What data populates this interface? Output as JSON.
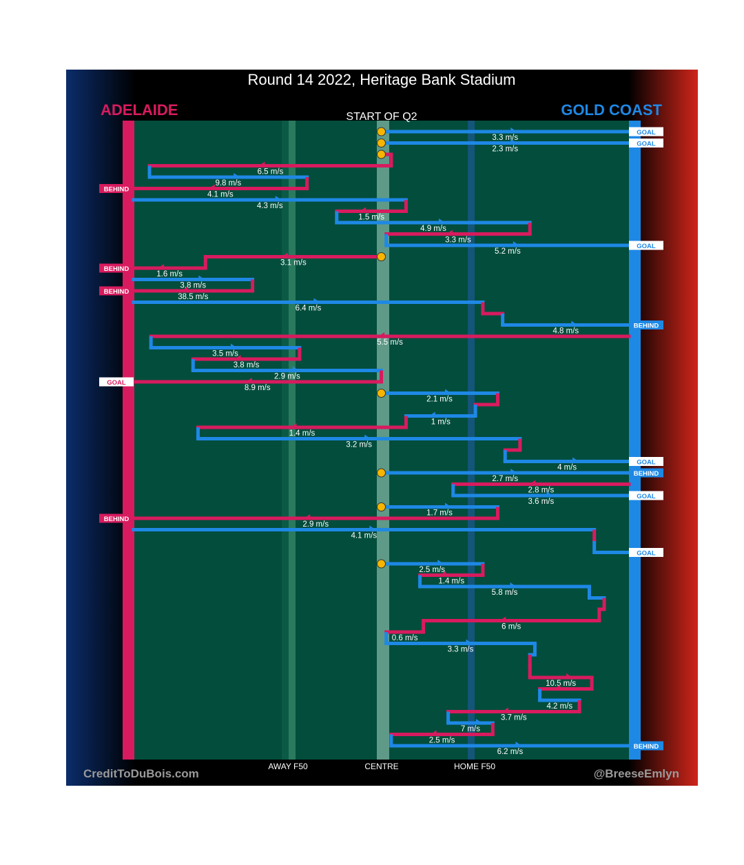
{
  "chart_data": {
    "type": "line",
    "title": "Round 14 2022, Heritage Bank Stadium",
    "subtitle": "START OF Q2",
    "teams": {
      "left": {
        "name": "ADELAIDE",
        "color": "#d81b5e"
      },
      "right": {
        "name": "GOLD COAST",
        "color": "#1e88e5"
      }
    },
    "x_axis_labels": [
      {
        "label": "AWAY F50",
        "at": 0.3
      },
      {
        "label": "CENTRE",
        "at": 0.5
      },
      {
        "label": "HOME F50",
        "at": 0.7
      }
    ],
    "credits": {
      "left": "CreditToDuBois.com",
      "right": "@BreeseEmlyn"
    },
    "colors": {
      "field": "#034d3c",
      "adelaide": "#d81b5e",
      "gold_coast": "#1e88e5",
      "marker": "#f7b500",
      "header": "#000000"
    },
    "chains": [
      {
        "segments": [
          {
            "team": "gc",
            "from": 0.5,
            "to": 1.0,
            "row": 0,
            "speed": "3.3 m/s"
          }
        ],
        "outcome": {
          "side": "right",
          "label": "GOAL",
          "team": "gc"
        }
      },
      {
        "segments": [
          {
            "team": "gc",
            "from": 0.5,
            "to": 1.0,
            "row": 1,
            "speed": "2.3 m/s"
          }
        ],
        "outcome": {
          "side": "right",
          "label": "GOAL",
          "team": "gc"
        }
      },
      {
        "segments": [
          {
            "team": "ad",
            "from": 0.5,
            "to": 0.52,
            "row": 2,
            "speed": ""
          },
          {
            "team": "ad",
            "from": 0.52,
            "to": 0.032,
            "row": 3,
            "speed": "6.5 m/s"
          },
          {
            "team": "gc",
            "from": 0.032,
            "to": 0.35,
            "row": 4,
            "speed": "9.8 m/s"
          },
          {
            "team": "ad",
            "from": 0.35,
            "to": 0.0,
            "row": 5,
            "speed": "4.1 m/s"
          }
        ],
        "outcome": {
          "side": "left",
          "label": "BEHIND",
          "team": "ad"
        }
      },
      {
        "segments": [
          {
            "team": "gc",
            "from": 0.0,
            "to": 0.55,
            "row": 6,
            "speed": "4.3 m/s"
          },
          {
            "team": "ad",
            "from": 0.55,
            "to": 0.41,
            "row": 7,
            "speed": "1.5 m/s"
          },
          {
            "team": "gc",
            "from": 0.41,
            "to": 0.8,
            "row": 8,
            "speed": "4.9 m/s"
          },
          {
            "team": "ad",
            "from": 0.8,
            "to": 0.51,
            "row": 9,
            "speed": "3.3 m/s"
          },
          {
            "team": "gc",
            "from": 0.51,
            "to": 1.0,
            "row": 10,
            "speed": "5.2 m/s"
          }
        ],
        "outcome": {
          "side": "right",
          "label": "GOAL",
          "team": "gc"
        }
      },
      {
        "segments": [
          {
            "team": "ad",
            "from": 0.5,
            "to": 0.145,
            "row": 11,
            "speed": "3.1 m/s"
          },
          {
            "team": "ad",
            "from": 0.145,
            "to": 0.0,
            "row": 12,
            "speed": "1.6 m/s"
          }
        ],
        "outcome": {
          "side": "left",
          "label": "BEHIND",
          "team": "ad"
        }
      },
      {
        "segments": [
          {
            "team": "gc",
            "from": 0.0,
            "to": 0.24,
            "row": 13,
            "speed": "3.8 m/s"
          },
          {
            "team": "ad",
            "from": 0.24,
            "to": 0.0,
            "row": 14,
            "speed": "38.5 m/s"
          }
        ],
        "outcome": {
          "side": "left",
          "label": "BEHIND",
          "team": "ad"
        }
      },
      {
        "segments": [
          {
            "team": "gc",
            "from": 0.0,
            "to": 0.705,
            "row": 15,
            "speed": "6.4 m/s"
          },
          {
            "team": "ad",
            "from": 0.705,
            "to": 0.745,
            "row": 16,
            "speed": ""
          },
          {
            "team": "gc",
            "from": 0.745,
            "to": 1.0,
            "row": 17,
            "speed": "4.8 m/s"
          }
        ],
        "outcome": {
          "side": "right",
          "label": "BEHIND",
          "team": "gc"
        }
      },
      {
        "segments": [
          {
            "team": "ad",
            "from": 1.0,
            "to": 0.035,
            "row": 18,
            "speed": "5.5 m/s"
          },
          {
            "team": "gc",
            "from": 0.035,
            "to": 0.335,
            "row": 19,
            "speed": "3.5 m/s"
          },
          {
            "team": "ad",
            "from": 0.335,
            "to": 0.12,
            "row": 20,
            "speed": "3.8 m/s"
          },
          {
            "team": "gc",
            "from": 0.12,
            "to": 0.5,
            "row": 21,
            "speed": "2.9 m/s"
          },
          {
            "team": "ad",
            "from": 0.5,
            "to": 0.0,
            "row": 22,
            "speed": "8.9 m/s"
          }
        ],
        "outcome": {
          "side": "left",
          "label": "GOAL",
          "team": "ad"
        }
      },
      {
        "segments": [
          {
            "team": "gc",
            "from": 0.5,
            "to": 0.735,
            "row": 23,
            "speed": "2.1 m/s"
          },
          {
            "team": "ad",
            "from": 0.735,
            "to": 0.69,
            "row": 24,
            "speed": ""
          },
          {
            "team": "gc",
            "from": 0.69,
            "to": 0.55,
            "row": 25,
            "speed": "1 m/s"
          },
          {
            "team": "ad",
            "from": 0.55,
            "to": 0.13,
            "row": 26,
            "speed": "1.4 m/s"
          },
          {
            "team": "gc",
            "from": 0.13,
            "to": 0.78,
            "row": 27,
            "speed": "3.2 m/s"
          },
          {
            "team": "ad",
            "from": 0.78,
            "to": 0.75,
            "row": 28,
            "speed": ""
          },
          {
            "team": "gc",
            "from": 0.75,
            "to": 1.0,
            "row": 29,
            "speed": "4 m/s"
          }
        ],
        "outcome": {
          "side": "right",
          "label": "GOAL",
          "team": "gc"
        }
      },
      {
        "segments": [
          {
            "team": "gc",
            "from": 0.5,
            "to": 1.0,
            "row": 30,
            "speed": "2.7 m/s"
          }
        ],
        "outcome": {
          "side": "right",
          "label": "BEHIND",
          "team": "gc"
        }
      },
      {
        "segments": [
          {
            "team": "ad",
            "from": 1.0,
            "to": 0.645,
            "row": 31,
            "speed": "2.8 m/s"
          },
          {
            "team": "gc",
            "from": 0.645,
            "to": 1.0,
            "row": 32,
            "speed": "3.6 m/s"
          }
        ],
        "outcome": {
          "side": "right",
          "label": "GOAL",
          "team": "gc"
        }
      },
      {
        "segments": [
          {
            "team": "gc",
            "from": 0.5,
            "to": 0.735,
            "row": 33,
            "speed": "1.7 m/s"
          },
          {
            "team": "ad",
            "from": 0.735,
            "to": 0.0,
            "row": 34,
            "speed": "2.9 m/s"
          }
        ],
        "outcome": {
          "side": "left",
          "label": "BEHIND",
          "team": "ad"
        }
      },
      {
        "segments": [
          {
            "team": "gc",
            "from": 0.0,
            "to": 0.93,
            "row": 35,
            "speed": "4.1 m/s"
          },
          {
            "team": "ad",
            "from": 0.93,
            "to": 0.93,
            "row": 36,
            "speed": ""
          },
          {
            "team": "gc",
            "from": 0.93,
            "to": 1.0,
            "row": 37,
            "speed": ""
          }
        ],
        "outcome": {
          "side": "right",
          "label": "GOAL",
          "team": "gc"
        }
      },
      {
        "segments": [
          {
            "team": "gc",
            "from": 0.5,
            "to": 0.705,
            "row": 38,
            "speed": "2.5 m/s"
          },
          {
            "team": "ad",
            "from": 0.705,
            "to": 0.578,
            "row": 39,
            "speed": "1.4 m/s"
          },
          {
            "team": "gc",
            "from": 0.578,
            "to": 0.92,
            "row": 40,
            "speed": "5.8 m/s"
          },
          {
            "team": "gc",
            "from": 0.92,
            "to": 0.95,
            "row": 41,
            "speed": ""
          },
          {
            "team": "ad",
            "from": 0.95,
            "to": 0.94,
            "row": 42,
            "speed": ""
          },
          {
            "team": "ad",
            "from": 0.94,
            "to": 0.585,
            "row": 43,
            "speed": "6 m/s"
          },
          {
            "team": "ad",
            "from": 0.585,
            "to": 0.51,
            "row": 44,
            "speed": "0.6 m/s"
          },
          {
            "team": "gc",
            "from": 0.51,
            "to": 0.81,
            "row": 45,
            "speed": "3.3 m/s"
          },
          {
            "team": "gc",
            "from": 0.81,
            "to": 0.8,
            "row": 46,
            "speed": ""
          },
          {
            "team": "ad",
            "from": 0.8,
            "to": 0.8,
            "row": 47,
            "speed": ""
          },
          {
            "team": "ad",
            "from": 0.8,
            "to": 0.925,
            "row": 48,
            "speed": "10.5 m/s"
          },
          {
            "team": "ad",
            "from": 0.925,
            "to": 0.82,
            "row": 49,
            "speed": ""
          },
          {
            "team": "gc",
            "from": 0.82,
            "to": 0.9,
            "row": 50,
            "speed": "4.2 m/s"
          },
          {
            "team": "ad",
            "from": 0.9,
            "to": 0.635,
            "row": 51,
            "speed": "3.7 m/s"
          },
          {
            "team": "gc",
            "from": 0.635,
            "to": 0.725,
            "row": 52,
            "speed": "7 m/s"
          },
          {
            "team": "ad",
            "from": 0.725,
            "to": 0.52,
            "row": 53,
            "speed": "2.5 m/s"
          },
          {
            "team": "gc",
            "from": 0.52,
            "to": 1.0,
            "row": 54,
            "speed": "6.2 m/s"
          }
        ],
        "outcome": {
          "side": "right",
          "label": "BEHIND",
          "team": "gc"
        }
      }
    ]
  }
}
